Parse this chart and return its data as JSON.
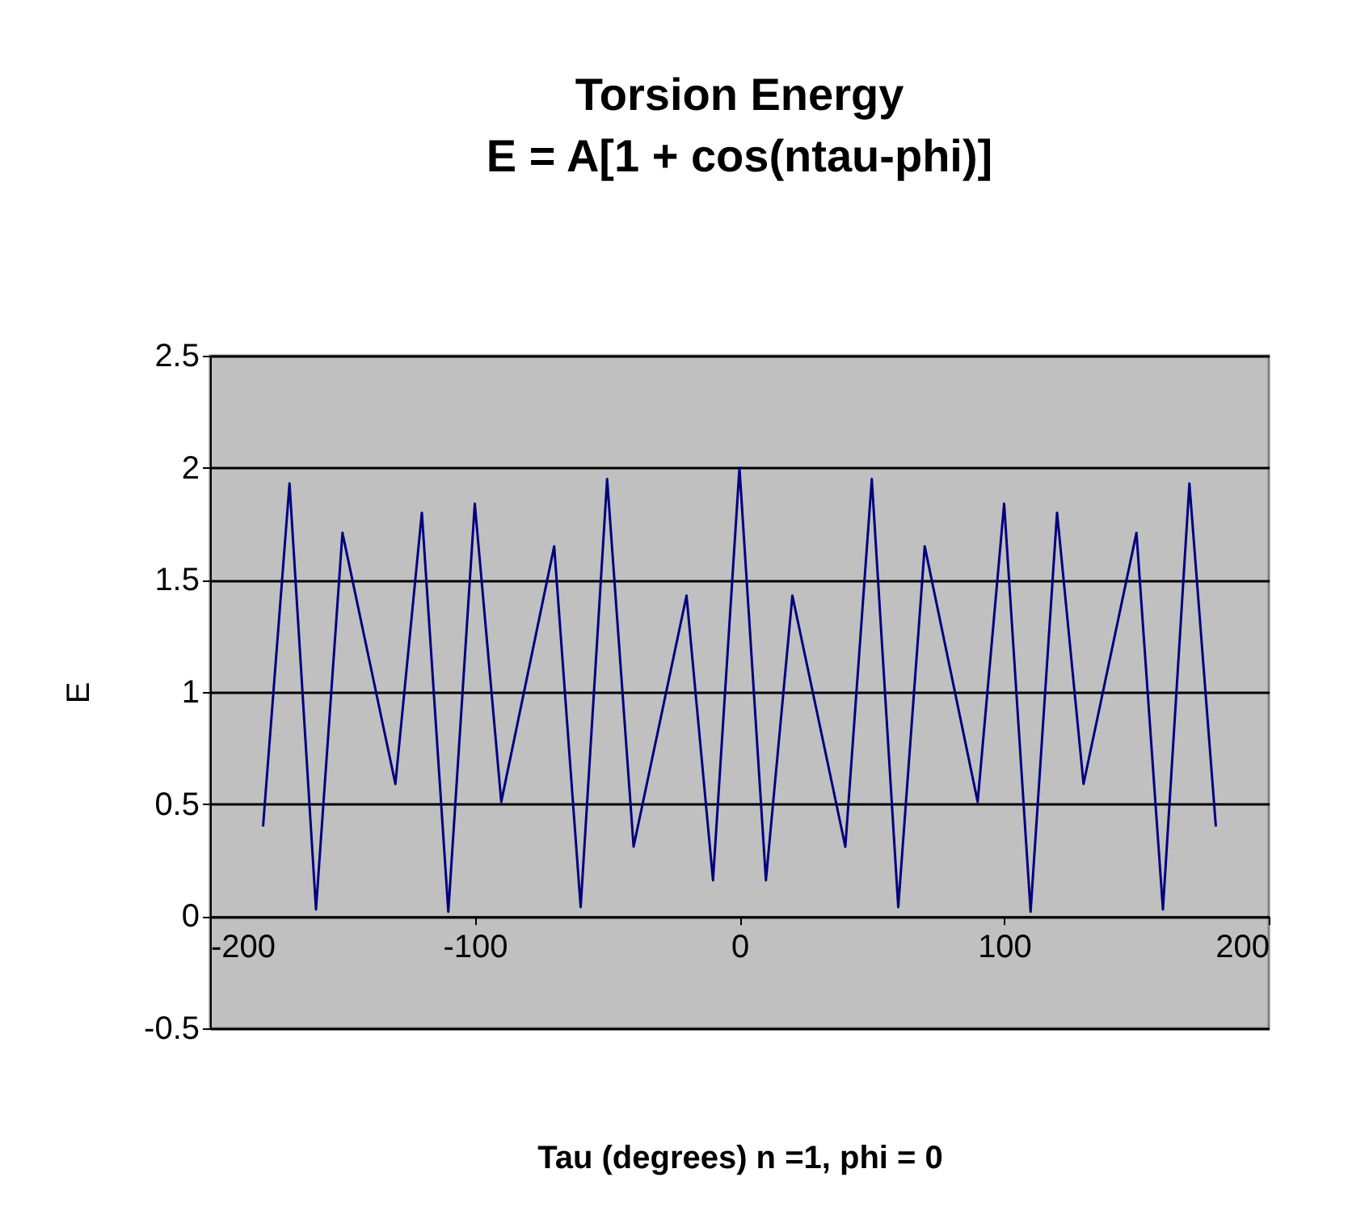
{
  "chart_data": {
    "type": "line",
    "title": "Torsion Energy",
    "subtitle": "E = A[1 + cos(ntau-phi)]",
    "xlabel": "Tau (degrees) n =1, phi = 0",
    "ylabel": "E",
    "x": [
      -180,
      -170,
      -160,
      -150,
      -130,
      -120,
      -110,
      -100,
      -90,
      -70,
      -60,
      -50,
      -40,
      -20,
      -10,
      0,
      10,
      20,
      40,
      50,
      60,
      70,
      90,
      100,
      110,
      120,
      130,
      150,
      160,
      170,
      180
    ],
    "series": [
      {
        "color": "#000080",
        "values": [
          0.4,
          1.93,
          0.03,
          1.71,
          0.59,
          1.8,
          0.02,
          1.84,
          0.51,
          1.65,
          0.04,
          1.95,
          0.31,
          1.43,
          0.16,
          2.0,
          0.16,
          1.43,
          0.31,
          1.95,
          0.04,
          1.65,
          0.51,
          1.84,
          0.02,
          1.8,
          0.59,
          1.71,
          0.03,
          1.93,
          0.4
        ]
      }
    ],
    "xlim": [
      -200,
      200
    ],
    "xticks": [
      -200,
      -100,
      0,
      100,
      200
    ],
    "ylim": [
      -0.5,
      2.5
    ],
    "yticks": [
      -0.5,
      0,
      0.5,
      1,
      1.5,
      2,
      2.5
    ],
    "grid": "y",
    "legend": false,
    "marker": "none",
    "line_style": "solid"
  }
}
